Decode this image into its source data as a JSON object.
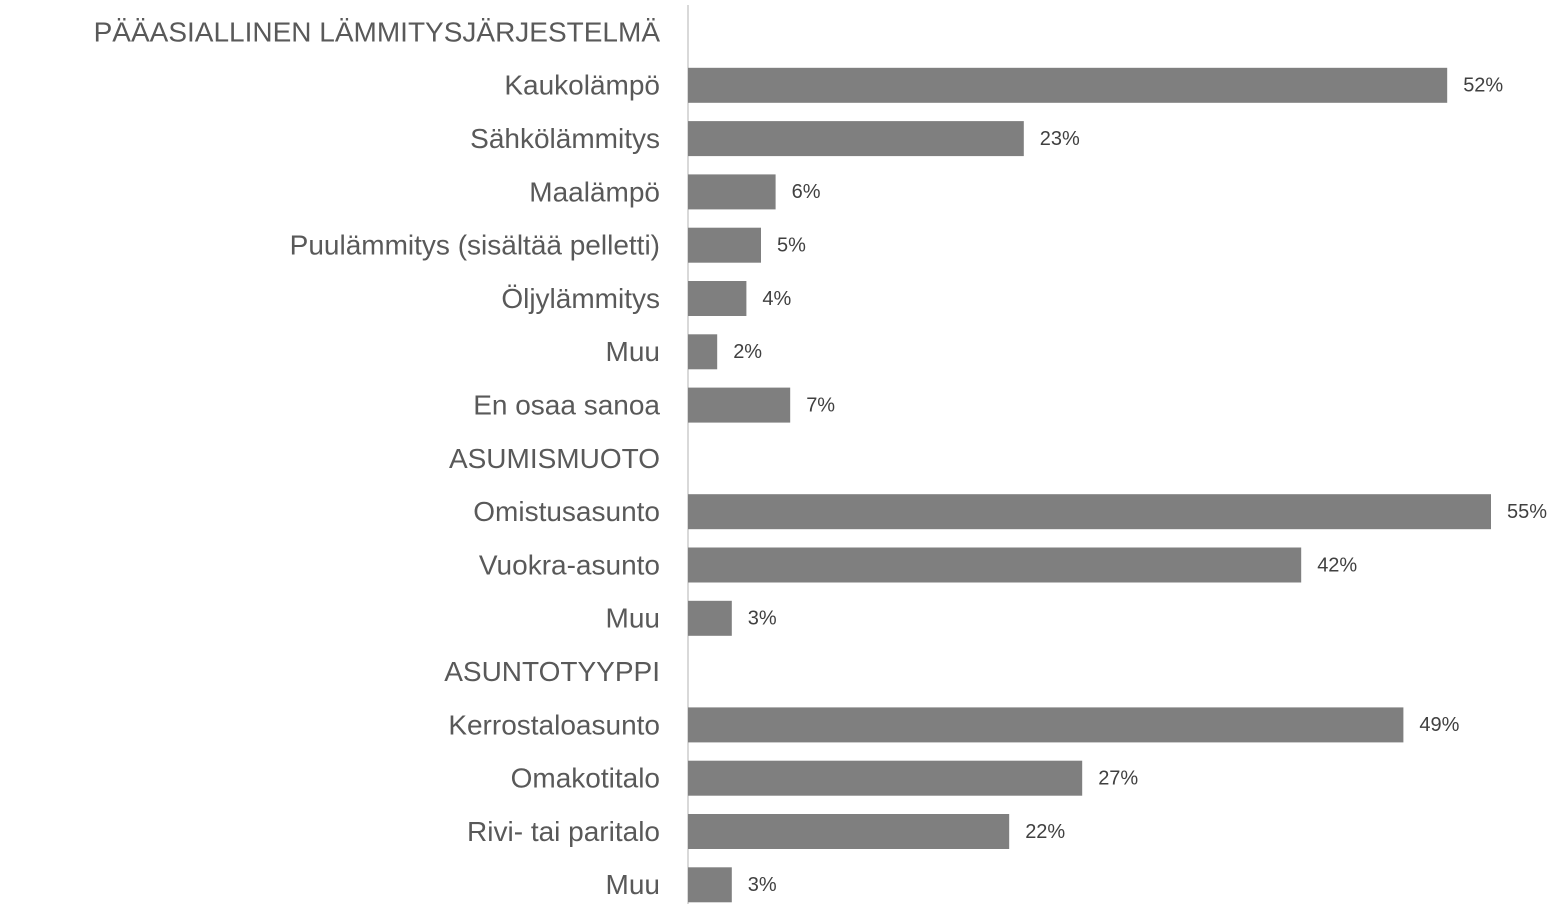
{
  "chart_data": {
    "type": "bar",
    "orientation": "horizontal",
    "color": "#7f7f7f",
    "categories": [
      "PÄÄASIALLINEN LÄMMITYSJÄRJESTELMÄ",
      "Kaukolämpö",
      "Sähkölämmitys",
      "Maalämpö",
      "Puulämmitys (sisältää pelletti)",
      "Öljylämmitys",
      "Muu",
      "En osaa sanoa",
      "ASUMISMUOTO",
      "Omistusasunto",
      "Vuokra-asunto",
      "Muu",
      "ASUNTOTYYPPI",
      "Kerrostaloasunto",
      "Omakotitalo",
      "Rivi- tai paritalo",
      "Muu"
    ],
    "values": [
      null,
      52,
      23,
      6,
      5,
      4,
      2,
      7,
      null,
      55,
      42,
      3,
      null,
      49,
      27,
      22,
      3
    ],
    "value_labels": [
      null,
      "52%",
      "23%",
      "6%",
      "5%",
      "4%",
      "2%",
      "7%",
      null,
      "55%",
      "42%",
      "3%",
      null,
      "49%",
      "27%",
      "22%",
      "3%"
    ]
  }
}
